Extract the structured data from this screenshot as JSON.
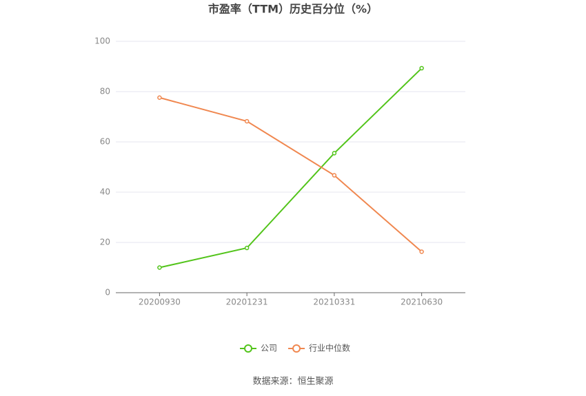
{
  "chart_data": {
    "type": "line",
    "title": "市盈率（TTM）历史百分位（%）",
    "categories": [
      "20200930",
      "20201231",
      "20210331",
      "20210630"
    ],
    "series": [
      {
        "name": "公司",
        "color": "#52c41a",
        "values": [
          10,
          17.8,
          55.5,
          89.3
        ]
      },
      {
        "name": "行业中位数",
        "color": "#f0874f",
        "values": [
          77.6,
          68.2,
          46.7,
          16.3
        ]
      }
    ],
    "ylim": [
      0,
      100
    ],
    "yticks": [
      0,
      20,
      40,
      60,
      80,
      100
    ],
    "grid": true,
    "legend": "bottom",
    "source": "数据来源：恒生聚源"
  }
}
